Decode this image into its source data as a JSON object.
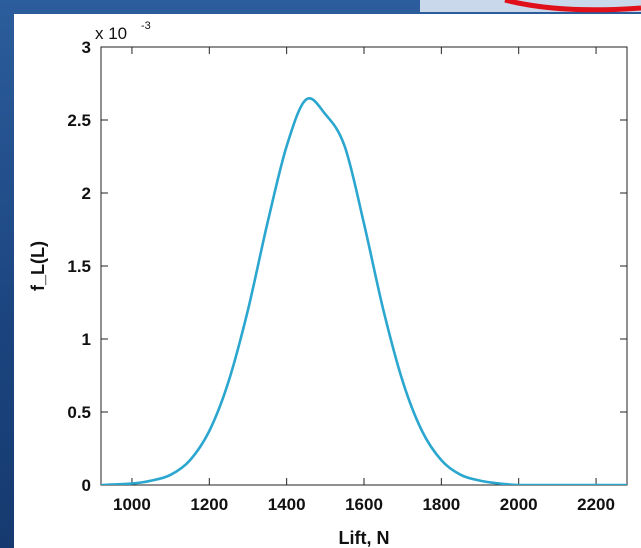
{
  "chart_data": {
    "type": "line",
    "xlabel": "Lift, N",
    "ylabel": "f_L(L)",
    "exponent_label": "x 10",
    "exponent_power": "-3",
    "xlim": [
      920,
      2280
    ],
    "ylim": [
      0,
      0.003
    ],
    "x_ticks": [
      1000,
      1200,
      1400,
      1600,
      1800,
      2000,
      2200
    ],
    "x_tick_labels": [
      "1000",
      "1200",
      "1400",
      "1600",
      "1800",
      "2000",
      "2200"
    ],
    "y_ticks": [
      0,
      0.0005,
      0.001,
      0.0015,
      0.002,
      0.0025,
      0.003
    ],
    "y_tick_labels": [
      "0",
      "0.5",
      "1",
      "1.5",
      "2",
      "2.5",
      "3"
    ],
    "grid": false,
    "series": [
      {
        "color": "#2aa6cf",
        "x": [
          920,
          1000,
          1050,
          1100,
          1150,
          1200,
          1250,
          1300,
          1350,
          1400,
          1450,
          1500,
          1550,
          1600,
          1650,
          1700,
          1750,
          1800,
          1850,
          1900,
          1950,
          2000,
          2050,
          2100,
          2200,
          2280
        ],
        "y": [
          0.0,
          1e-05,
          3e-05,
          7e-05,
          0.00017,
          0.00037,
          0.00071,
          0.0012,
          0.00179,
          0.00232,
          0.00264,
          0.00254,
          0.00232,
          0.00179,
          0.0012,
          0.00071,
          0.00037,
          0.00017,
          7e-05,
          3e-05,
          1e-05,
          0.0,
          0.0,
          0.0,
          0.0,
          0.0
        ]
      }
    ]
  }
}
